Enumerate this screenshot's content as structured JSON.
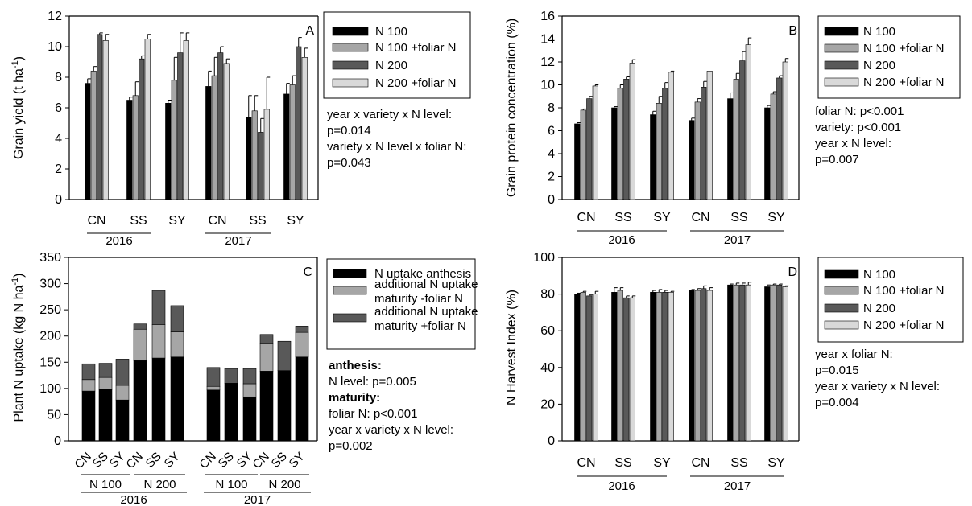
{
  "colors": {
    "n100": "#000000",
    "n100_foliar": "#a6a6a6",
    "n200": "#595959",
    "n200_foliar": "#d9d9d9",
    "anthesis": "#000000",
    "add_minus": "#a6a6a6",
    "add_plus": "#595959"
  },
  "chart_data": [
    {
      "panel": "A",
      "type": "bar",
      "ylabel": "Grain yield (t ha",
      "ylabel_sup": "-1",
      "ylabel_end": ")",
      "ylim": [
        0,
        12
      ],
      "yticks": [
        "0",
        "2",
        "4",
        "6",
        "8",
        "10",
        "12"
      ],
      "categories": [
        "CN",
        "SS",
        "SY",
        "CN",
        "SS",
        "SY"
      ],
      "groups": [
        {
          "label": "2016",
          "from": 0,
          "to": 2
        },
        {
          "label": "2017",
          "from": 3,
          "to": 5
        }
      ],
      "legend": [
        "N 100",
        "N 100 +foliar N",
        "N 200",
        "N 200 +foliar N"
      ],
      "series": [
        {
          "name": "N 100",
          "values": [
            7.6,
            6.5,
            6.3,
            7.4,
            5.4,
            6.9
          ],
          "errors": [
            0.3,
            0.2,
            0.2,
            1.0,
            1.4,
            0.7
          ]
        },
        {
          "name": "N 100 +foliar N",
          "values": [
            8.4,
            6.8,
            7.8,
            8.1,
            5.8,
            7.5
          ],
          "errors": [
            0.3,
            0.9,
            1.5,
            1.2,
            1.0,
            0.6
          ]
        },
        {
          "name": "N 200",
          "values": [
            10.8,
            9.2,
            9.6,
            9.6,
            4.4,
            10.0
          ],
          "errors": [
            0.1,
            0.2,
            1.3,
            0.4,
            0.9,
            0.6
          ]
        },
        {
          "name": "N 200 +foliar N",
          "values": [
            10.4,
            10.5,
            10.4,
            8.9,
            5.9,
            9.3
          ],
          "errors": [
            0.4,
            0.3,
            0.5,
            0.3,
            2.1,
            0.6
          ]
        }
      ],
      "notes": [
        {
          "text": "year x variety x N level:",
          "bold": false
        },
        {
          "text": "p=0.014",
          "bold": false
        },
        {
          "text": "variety x N level x foliar N:",
          "bold": false
        },
        {
          "text": "p=0.043",
          "bold": false
        }
      ]
    },
    {
      "panel": "B",
      "type": "bar",
      "ylabel": "Grain protein concentration (%)",
      "ylabel_sup": "",
      "ylabel_end": "",
      "ylim": [
        0,
        16
      ],
      "yticks": [
        "0",
        "2",
        "4",
        "6",
        "8",
        "10",
        "12",
        "14",
        "16"
      ],
      "categories": [
        "CN",
        "SS",
        "SY",
        "CN",
        "SS",
        "SY"
      ],
      "groups": [
        {
          "label": "2016",
          "from": 0,
          "to": 2
        },
        {
          "label": "2017",
          "from": 3,
          "to": 5
        }
      ],
      "legend": [
        "N 100",
        "N 100 +foliar N",
        "N 200",
        "N 200 +foliar N"
      ],
      "series": [
        {
          "name": "N 100",
          "values": [
            6.6,
            8.0,
            7.4,
            6.9,
            8.8,
            8.0
          ],
          "errors": [
            0.1,
            0.1,
            0.3,
            0.2,
            0.5,
            0.2
          ]
        },
        {
          "name": "N 100 +foliar N",
          "values": [
            7.8,
            9.7,
            8.4,
            8.5,
            10.5,
            9.2
          ],
          "errors": [
            0.1,
            0.3,
            0.6,
            0.3,
            0.5,
            0.2
          ]
        },
        {
          "name": "N 200",
          "values": [
            8.8,
            10.5,
            9.7,
            9.8,
            12.1,
            10.6
          ],
          "errors": [
            0.2,
            0.2,
            0.5,
            0.5,
            0.8,
            0.2
          ]
        },
        {
          "name": "N 200 +foliar N",
          "values": [
            9.9,
            11.9,
            11.1,
            11.2,
            13.5,
            12.0
          ],
          "errors": [
            0.1,
            0.3,
            0.1,
            0.0,
            0.6,
            0.3
          ]
        }
      ],
      "notes": [
        {
          "text": "foliar N: p<0.001",
          "bold": false
        },
        {
          "text": "variety: p<0.001",
          "bold": false
        },
        {
          "text": "year x N level:",
          "bold": false
        },
        {
          "text": "p=0.007",
          "bold": false
        }
      ]
    },
    {
      "panel": "C",
      "type": "stacked-bar",
      "ylabel": "Plant N uptake (kg N ha",
      "ylabel_sup": "-1",
      "ylabel_end": ")",
      "ylim": [
        0,
        350
      ],
      "yticks": [
        "0",
        "50",
        "100",
        "150",
        "200",
        "250",
        "300",
        "350"
      ],
      "categories": [
        "CN",
        "SS",
        "SY",
        "CN",
        "SS",
        "SY",
        "CN",
        "SS",
        "SY",
        "CN",
        "SS",
        "SY"
      ],
      "subgroups": [
        {
          "label": "N 100",
          "from": 0,
          "to": 2
        },
        {
          "label": "N 200",
          "from": 3,
          "to": 5
        },
        {
          "label": "N 100",
          "from": 6,
          "to": 8
        },
        {
          "label": "N 200",
          "from": 9,
          "to": 11
        }
      ],
      "groups": [
        {
          "label": "2016",
          "from": 0,
          "to": 5
        },
        {
          "label": "2017",
          "from": 6,
          "to": 11
        }
      ],
      "legend": [
        "N uptake anthesis",
        "additional N uptake maturity -foliar N",
        "additional N uptake maturity +foliar N"
      ],
      "series": [
        {
          "name": "N uptake anthesis",
          "values": [
            95,
            98,
            78,
            153,
            158,
            160,
            97,
            110,
            84,
            133,
            134,
            160
          ]
        },
        {
          "name": "additional N uptake maturity -foliar N",
          "values": [
            22,
            23,
            28,
            60,
            64,
            48,
            7,
            0,
            25,
            53,
            0,
            47
          ]
        },
        {
          "name": "additional N uptake maturity +foliar N",
          "values": [
            30,
            27,
            50,
            10,
            65,
            50,
            36,
            28,
            29,
            17,
            56,
            12
          ]
        }
      ],
      "notes": [
        {
          "text": "anthesis:",
          "bold": true
        },
        {
          "text": "N level: p=0.005",
          "bold": false
        },
        {
          "text": "maturity:",
          "bold": true
        },
        {
          "text": "foliar N: p<0.001",
          "bold": false
        },
        {
          "text": "year x variety x N level:",
          "bold": false
        },
        {
          "text": "p=0.002",
          "bold": false
        }
      ]
    },
    {
      "panel": "D",
      "type": "bar",
      "ylabel": "N Harvest Index (%)",
      "ylabel_sup": "",
      "ylabel_end": "",
      "ylim": [
        0,
        100
      ],
      "yticks": [
        "0",
        "20",
        "40",
        "60",
        "80",
        "100"
      ],
      "categories": [
        "CN",
        "SS",
        "SY",
        "CN",
        "SS",
        "SY"
      ],
      "groups": [
        {
          "label": "2016",
          "from": 0,
          "to": 2
        },
        {
          "label": "2017",
          "from": 3,
          "to": 5
        }
      ],
      "legend": [
        "N 100",
        "N 100 +foliar N",
        "N 200",
        "N 200 +foliar N"
      ],
      "series": [
        {
          "name": "N 100",
          "values": [
            80,
            81,
            81,
            82,
            85,
            84
          ],
          "errors": [
            0.5,
            2.5,
            1.0,
            0.5,
            0.5,
            1.0
          ]
        },
        {
          "name": "N 100 +foliar N",
          "values": [
            81,
            82,
            81,
            82,
            85,
            85
          ],
          "errors": [
            0.5,
            1.5,
            1.5,
            1.0,
            1.0,
            0.5
          ]
        },
        {
          "name": "N 200",
          "values": [
            79,
            78,
            81,
            83,
            85,
            85
          ],
          "errors": [
            0.5,
            1.0,
            1.0,
            1.5,
            1.0,
            0.5
          ]
        },
        {
          "name": "N 200 +foliar N",
          "values": [
            80,
            78,
            81,
            82,
            85,
            84
          ],
          "errors": [
            1.5,
            1.0,
            0.5,
            1.5,
            1.5,
            0.5
          ]
        }
      ],
      "notes": [
        {
          "text": "year x foliar N:",
          "bold": false
        },
        {
          "text": "p=0.015",
          "bold": false
        },
        {
          "text": "year x variety x N level:",
          "bold": false
        },
        {
          "text": "p=0.004",
          "bold": false
        }
      ]
    }
  ]
}
